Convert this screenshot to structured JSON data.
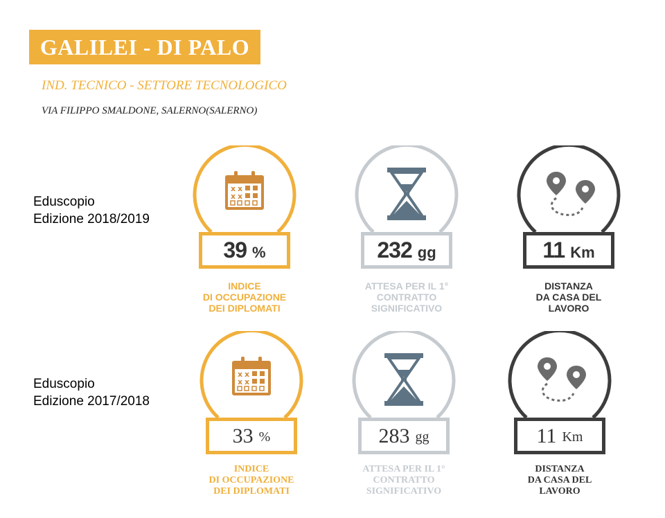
{
  "header": {
    "title": "GALILEI - DI PALO",
    "subtitle": "IND. TECNICO - SETTORE TECNOLOGICO",
    "address": "VIA FILIPPO SMALDONE, SALERNO(SALERNO)"
  },
  "colors": {
    "yellow": "#f0b03c",
    "light_gray": "#c6cbd0",
    "dark_gray": "#3d3d3d",
    "icon_brown": "#cf8a3a",
    "icon_slate": "#5e7484",
    "icon_gray": "#6b6b6b"
  },
  "editions": [
    {
      "label_line1": "Eduscopio",
      "label_line2": "Edizione 2018/2019",
      "occupazione": {
        "value": "39",
        "unit": "%",
        "caption": [
          "INDICE",
          "DI OCCUPAZIONE",
          "DEI DIPLOMATI"
        ],
        "icon": "calendar-icon"
      },
      "attesa": {
        "value": "232",
        "unit": "gg",
        "caption": [
          "ATTESA PER IL 1°",
          "CONTRATTO",
          "SIGNIFICATIVO"
        ],
        "icon": "hourglass-icon"
      },
      "distanza": {
        "value": "11",
        "unit": "Km",
        "caption": [
          "DISTANZA",
          "DA CASA DEL",
          "LAVORO"
        ],
        "icon": "route-pins-icon"
      }
    },
    {
      "label_line1": "Eduscopio",
      "label_line2": "Edizione 2017/2018",
      "occupazione": {
        "value": "33",
        "unit": "%",
        "caption": [
          "INDICE",
          "DI OCCUPAZIONE",
          "DEI DIPLOMATI"
        ],
        "icon": "calendar-icon"
      },
      "attesa": {
        "value": "283",
        "unit": "gg",
        "caption": [
          "ATTESA PER IL 1°",
          "CONTRATTO",
          "SIGNIFICATIVO"
        ],
        "icon": "hourglass-icon"
      },
      "distanza": {
        "value": "11",
        "unit": "Km",
        "caption": [
          "DISTANZA",
          "DA CASA DEL",
          "LAVORO"
        ],
        "icon": "route-pins-icon"
      }
    }
  ]
}
